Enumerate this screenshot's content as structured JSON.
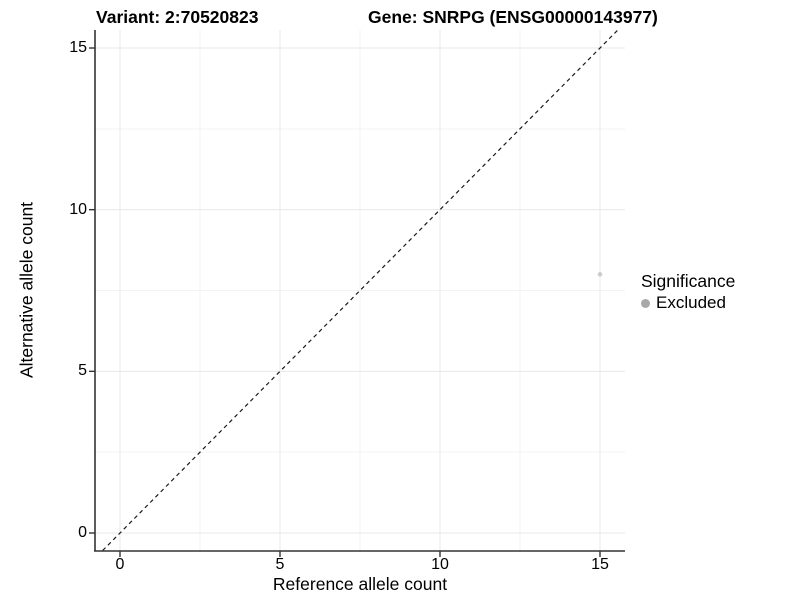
{
  "header": {
    "variant_title": "Variant: 2:70520823",
    "gene_title": "Gene: SNRPG (ENSG00000143977)"
  },
  "chart_data": {
    "type": "scatter",
    "title_left": "Variant: 2:70520823",
    "title_right": "Gene: SNRPG (ENSG00000143977)",
    "xlabel": "Reference allele count",
    "ylabel": "Alternative allele count",
    "xlim": [
      -0.8,
      15.8
    ],
    "ylim": [
      -0.6,
      15.6
    ],
    "x_ticks": [
      0,
      5,
      10,
      15
    ],
    "y_ticks": [
      0,
      5,
      10,
      15
    ],
    "minor_gridlines": [
      2.5,
      7.5,
      12.5
    ],
    "grid": true,
    "reference_line": {
      "kind": "identity y=x",
      "style": "dashed",
      "color": "#1a1a1a"
    },
    "series": [
      {
        "name": "Excluded",
        "point_color": "#cccccc",
        "points": [
          {
            "x": 15,
            "y": 8
          }
        ]
      }
    ],
    "legend": {
      "title": "Significance",
      "position": "right",
      "items": [
        {
          "label": "Excluded",
          "color": "#a8a8a8"
        }
      ]
    }
  },
  "axes": {
    "x_label": "Reference allele count",
    "y_label": "Alternative allele count"
  },
  "legend": {
    "title": "Significance",
    "excluded_label": "Excluded"
  },
  "colors": {
    "background": "#ffffff",
    "grid_major": "#e8e8e8",
    "grid_minor": "#f3f3f3",
    "axis_line": "#333333",
    "diagonal_line": "#1a1a1a",
    "data_point": "#cccccc",
    "legend_dot": "#a8a8a8"
  }
}
